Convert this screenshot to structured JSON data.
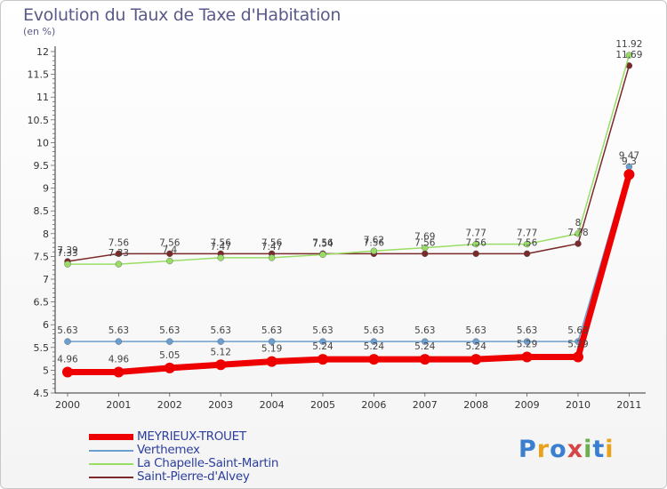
{
  "header": {
    "title": "Evolution du Taux de Taxe d'Habitation",
    "unit": "(en %)"
  },
  "logo": {
    "text": "Proxiti",
    "colors": [
      "#3a7fd0",
      "#e8a21c",
      "#3a7fd0",
      "#d64545",
      "#6ab04c",
      "#3a7fd0",
      "#e8a21c"
    ]
  },
  "chart_data": {
    "type": "line",
    "title": "Evolution du Taux de Taxe d'Habitation",
    "ylabel": "(en %)",
    "xlabel": "",
    "ylim": [
      4.5,
      12.0
    ],
    "grid": false,
    "legend_position": "bottom-left",
    "categories": [
      "2000",
      "2001",
      "2002",
      "2003",
      "2004",
      "2005",
      "2006",
      "2007",
      "2008",
      "2009",
      "2010",
      "2011"
    ],
    "y_ticks": [
      "4.5",
      "5",
      "5.5",
      "6",
      "6.5",
      "7",
      "7.5",
      "8",
      "8.5",
      "9",
      "9.5",
      "10",
      "10.5",
      "11",
      "11.5",
      "12"
    ],
    "series": [
      {
        "name": "MEYRIEUX-TROUET",
        "color": "#ee0000",
        "width": 7,
        "marker": 6,
        "values": [
          4.96,
          4.96,
          5.05,
          5.12,
          5.19,
          5.24,
          5.24,
          5.24,
          5.24,
          5.29,
          5.29,
          9.3
        ],
        "labels": [
          "4.96",
          "4.96",
          "5.05",
          "5.12",
          "5.19",
          "5.24",
          "5.24",
          "5.24",
          "5.24",
          "5.29",
          "5.29",
          "9.3"
        ]
      },
      {
        "name": "Verthemex",
        "color": "#6a9fd0",
        "width": 1.5,
        "marker": 3.5,
        "values": [
          5.63,
          5.63,
          5.63,
          5.63,
          5.63,
          5.63,
          5.63,
          5.63,
          5.63,
          5.63,
          5.63,
          9.47
        ],
        "labels": [
          "5.63",
          "5.63",
          "5.63",
          "5.63",
          "5.63",
          "5.63",
          "5.63",
          "5.63",
          "5.63",
          "5.63",
          "5.63",
          "9.47"
        ]
      },
      {
        "name": "La Chapelle-Saint-Martin",
        "color": "#99dd66",
        "width": 1.5,
        "marker": 3.5,
        "values": [
          7.33,
          7.33,
          7.4,
          7.47,
          7.47,
          7.54,
          7.62,
          7.69,
          7.77,
          7.77,
          8.0,
          11.92
        ],
        "labels": [
          "7.33",
          "7.33",
          "7.4",
          "7.47",
          "7.47",
          "7.54",
          "7.62",
          "7.69",
          "7.77",
          "7.77",
          "8",
          "11.92"
        ]
      },
      {
        "name": "Saint-Pierre-d'Alvey",
        "color": "#7a2a2a",
        "width": 1.5,
        "marker": 3.5,
        "values": [
          7.39,
          7.56,
          7.56,
          7.56,
          7.56,
          7.56,
          7.56,
          7.56,
          7.56,
          7.56,
          7.78,
          11.69
        ],
        "labels": [
          "7.39",
          "7.56",
          "7.56",
          "7.56",
          "7.56",
          "7.56",
          "7.56",
          "7.56",
          "7.56",
          "7.56",
          "7.78",
          "11.69"
        ]
      }
    ]
  }
}
